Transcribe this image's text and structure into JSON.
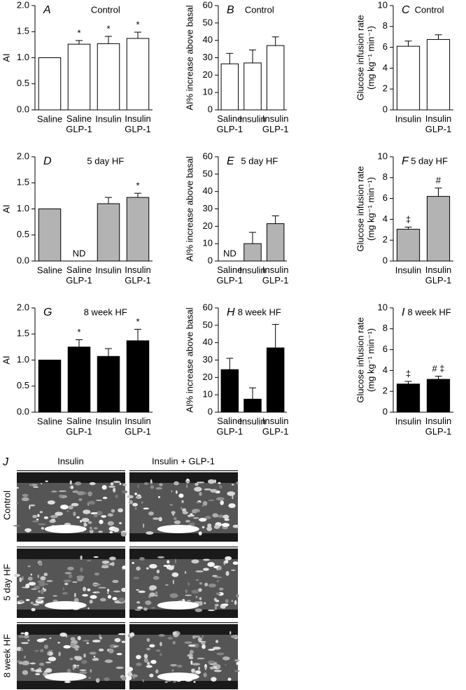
{
  "chart_data": [
    {
      "type": "bar",
      "panel": "A",
      "title": "Control",
      "ylabel": "AI",
      "categories": [
        "Saline",
        "Saline GLP-1",
        "Insulin",
        "Insulin GLP-1"
      ],
      "values": [
        1.0,
        1.26,
        1.27,
        1.37
      ],
      "errors": [
        null,
        0.07,
        0.14,
        0.12
      ],
      "annotations": [
        null,
        "*",
        "*",
        "*"
      ],
      "color": "#ffffff",
      "ylim": [
        0,
        2
      ],
      "yticks": [
        {
          "value": 0,
          "label": "0.0"
        },
        {
          "value": 0.5,
          "label": "0.5"
        },
        {
          "value": 1,
          "label": "1.0"
        },
        {
          "value": 1.5,
          "label": "1.5"
        },
        {
          "value": 2,
          "label": "2.0"
        }
      ]
    },
    {
      "type": "bar",
      "panel": "B",
      "title": "Control",
      "ylabel": "AI% increase above basal",
      "categories": [
        "Saline GLP-1",
        "Insulin",
        "Insulin GLP-1"
      ],
      "values": [
        26.5,
        27,
        37
      ],
      "errors": [
        6,
        7.5,
        5
      ],
      "annotations": [
        null,
        null,
        null
      ],
      "color": "#ffffff",
      "ylim": [
        0,
        60
      ],
      "yticks": [
        0,
        10,
        20,
        30,
        40,
        50,
        60
      ]
    },
    {
      "type": "bar",
      "panel": "C",
      "title": "Control",
      "ylabel": "Glucose infusion rate",
      "ylabel_units": "(mg kg⁻¹ min⁻¹)",
      "categories": [
        "Insulin",
        "Insulin GLP-1"
      ],
      "values": [
        6.1,
        6.75
      ],
      "errors": [
        0.5,
        0.45
      ],
      "annotations": [
        null,
        null
      ],
      "color": "#ffffff",
      "ylim": [
        0,
        10
      ],
      "yticks": [
        0,
        2,
        4,
        6,
        8,
        10
      ]
    },
    {
      "type": "bar",
      "panel": "D",
      "title": "5 day HF",
      "ylabel": "AI",
      "categories": [
        "Saline",
        "Saline GLP-1",
        "Insulin",
        "Insulin GLP-1"
      ],
      "values": [
        1.0,
        null,
        1.1,
        1.22
      ],
      "errors": [
        null,
        null,
        0.12,
        0.08
      ],
      "annotations": [
        null,
        "ND",
        null,
        "*"
      ],
      "color": "#b3b3b3",
      "ylim": [
        0,
        2
      ],
      "yticks": [
        {
          "value": 0,
          "label": "0.0"
        },
        {
          "value": 0.5,
          "label": "0.5"
        },
        {
          "value": 1,
          "label": "1.0"
        },
        {
          "value": 1.5,
          "label": "1.5"
        },
        {
          "value": 2,
          "label": "2.0"
        }
      ]
    },
    {
      "type": "bar",
      "panel": "E",
      "title": "5 day HF",
      "ylabel": "AI% increase above basal",
      "categories": [
        "Saline GLP-1",
        "Insulin",
        "Insulin GLP-1"
      ],
      "values": [
        null,
        10,
        21.5
      ],
      "errors": [
        null,
        6.5,
        4.5
      ],
      "annotations": [
        "ND",
        null,
        null
      ],
      "color": "#b3b3b3",
      "ylim": [
        0,
        60
      ],
      "yticks": [
        0,
        10,
        20,
        30,
        40,
        50,
        60
      ]
    },
    {
      "type": "bar",
      "panel": "F",
      "title": "5 day HF",
      "ylabel": "Glucose infusion rate",
      "ylabel_units": "(mg kg⁻¹ min⁻¹)",
      "categories": [
        "Insulin",
        "Insulin GLP-1"
      ],
      "values": [
        3.05,
        6.2
      ],
      "errors": [
        0.2,
        0.8
      ],
      "annotations": [
        "‡",
        "#"
      ],
      "color": "#b3b3b3",
      "ylim": [
        0,
        10
      ],
      "yticks": [
        0,
        2,
        4,
        6,
        8,
        10
      ]
    },
    {
      "type": "bar",
      "panel": "G",
      "title": "8 week HF",
      "ylabel": "AI",
      "categories": [
        "Saline",
        "Saline GLP-1",
        "Insulin",
        "Insulin GLP-1"
      ],
      "values": [
        1.0,
        1.25,
        1.07,
        1.37
      ],
      "errors": [
        null,
        0.14,
        0.15,
        0.22
      ],
      "annotations": [
        null,
        "*",
        null,
        "*"
      ],
      "color": "#000000",
      "ylim": [
        0,
        2
      ],
      "yticks": [
        {
          "value": 0,
          "label": "0.0"
        },
        {
          "value": 0.5,
          "label": "0.5"
        },
        {
          "value": 1,
          "label": "1.0"
        },
        {
          "value": 1.5,
          "label": "1.5"
        },
        {
          "value": 2,
          "label": "2.0"
        }
      ]
    },
    {
      "type": "bar",
      "panel": "H",
      "title": "8 week HF",
      "ylabel": "AI% increase above basal",
      "categories": [
        "Saline GLP-1",
        "Insulin",
        "Insulin GLP-1"
      ],
      "values": [
        24.5,
        7.5,
        37
      ],
      "errors": [
        6.5,
        6.5,
        13.5
      ],
      "annotations": [
        null,
        null,
        null
      ],
      "color": "#000000",
      "ylim": [
        0,
        60
      ],
      "yticks": [
        0,
        10,
        20,
        30,
        40,
        50,
        60
      ]
    },
    {
      "type": "bar",
      "panel": "I",
      "title": "8 week HF",
      "ylabel": "Glucose infusion rate",
      "ylabel_units": "(mg kg⁻¹ min⁻¹)",
      "categories": [
        "Insulin",
        "Insulin GLP-1"
      ],
      "values": [
        2.7,
        3.15
      ],
      "errors": [
        0.25,
        0.3
      ],
      "annotations": [
        "‡",
        "# ‡"
      ],
      "color": "#000000",
      "ylim": [
        0,
        10
      ],
      "yticks": [
        0,
        2,
        4,
        6,
        8,
        10
      ]
    }
  ],
  "panel_j": {
    "label": "J",
    "columns": [
      "Insulin",
      "Insulin + GLP-1"
    ],
    "rows": [
      "Control",
      "5 day HF",
      "8 week HF"
    ]
  }
}
